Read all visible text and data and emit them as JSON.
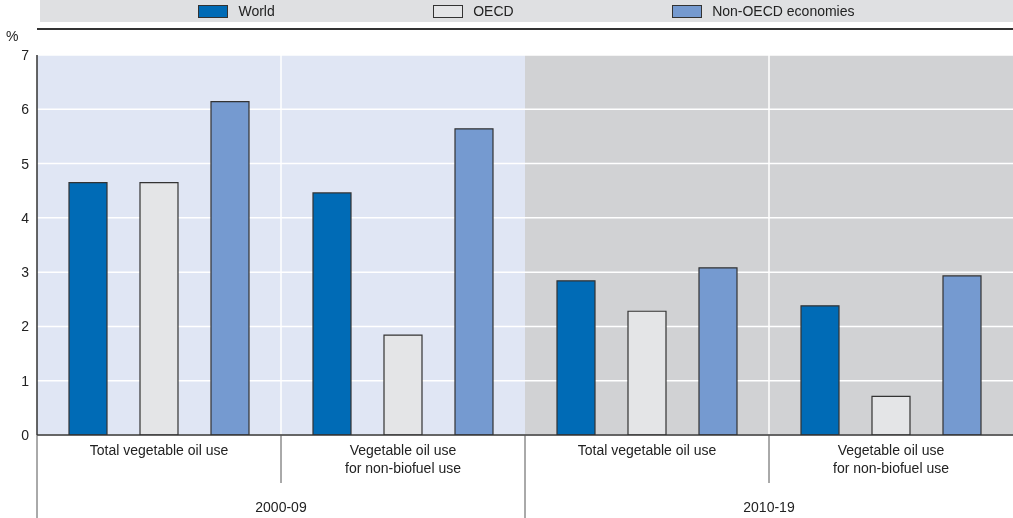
{
  "chart_data": {
    "type": "bar",
    "ylabel": "%",
    "categories": [
      "Total vegetable oil use",
      "Vegetable oil use for non-biofuel use",
      "Total vegetable oil use",
      "Vegetable oil use for non-biofuel use"
    ],
    "series": [
      {
        "name": "World",
        "color": "#006bb6",
        "values": [
          4.65,
          4.46,
          2.84,
          2.38
        ]
      },
      {
        "name": "OECD",
        "color": "#e4e5e7",
        "values": [
          4.65,
          1.84,
          2.28,
          0.71
        ]
      },
      {
        "name": "Non-OECD economies",
        "color": "#759ad0",
        "values": [
          6.14,
          5.64,
          3.08,
          2.93
        ]
      }
    ],
    "annotations": [
      "2000-09",
      "2010-19"
    ],
    "ylim": [
      0,
      7
    ],
    "yticks": [
      0,
      1,
      2,
      3,
      4,
      5,
      6,
      7
    ],
    "grid": "y",
    "legend": "top"
  }
}
